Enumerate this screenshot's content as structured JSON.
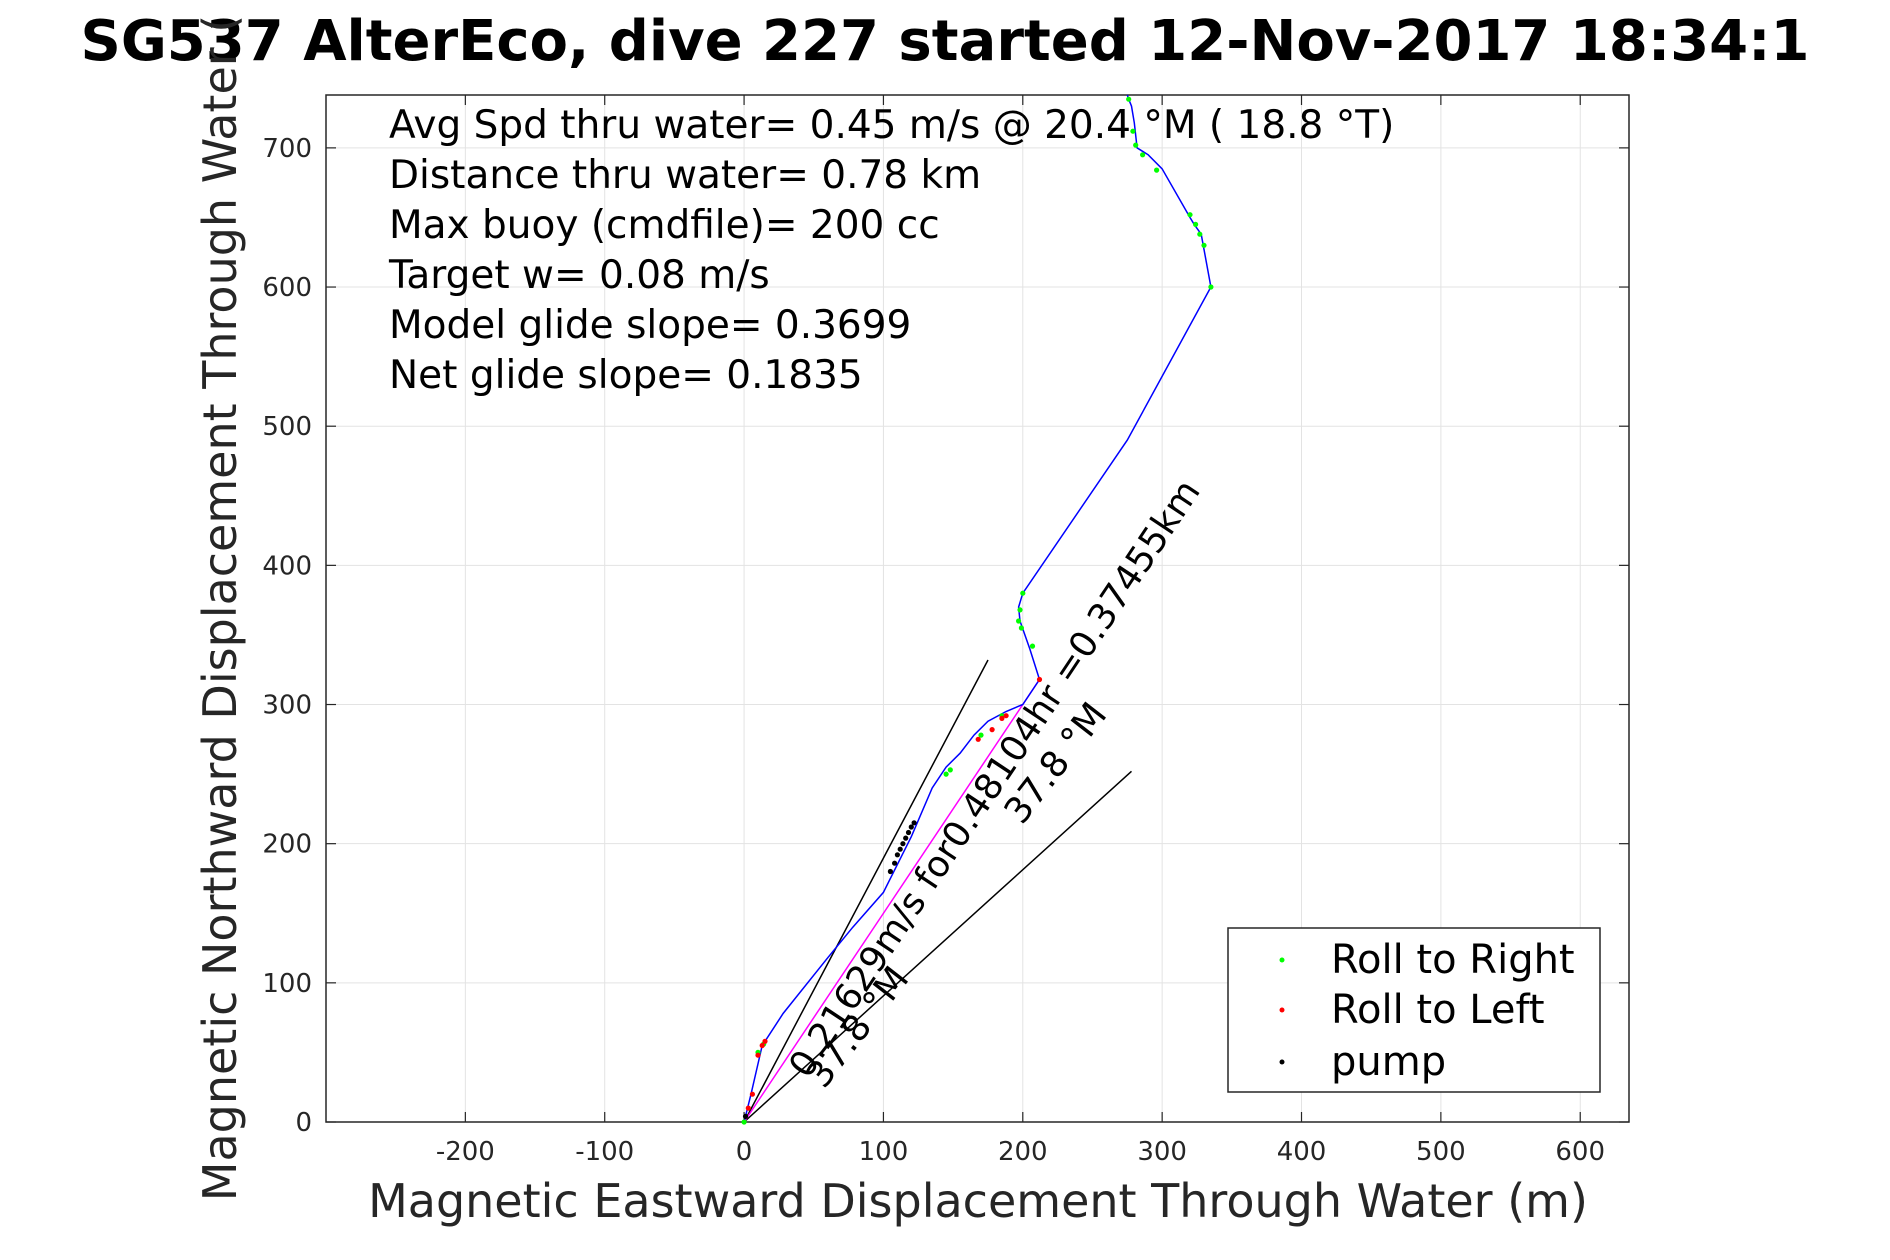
{
  "chart_data": {
    "type": "line",
    "title": "SG537 AlterEco, dive 227 started 12-Nov-2017 18:34:1",
    "xlabel": "Magnetic Eastward Displacement Through Water (m)",
    "ylabel": "Magnetic Northward Displacement Through Water (",
    "xlim": [
      -300,
      635
    ],
    "ylim": [
      0,
      738
    ],
    "xticks": [
      -200,
      -100,
      0,
      100,
      200,
      300,
      400,
      500,
      600
    ],
    "yticks": [
      0,
      100,
      200,
      300,
      400,
      500,
      600,
      700
    ],
    "grid": true,
    "legend_position": "bottom-right",
    "stats_lines": [
      "Avg Spd thru water=  0.45 m/s @  20.4 °M ( 18.8 °T)",
      "Distance thru water=  0.78 km",
      "Max buoy (cmdfile)= 200 cc",
      "Target w= 0.08 m/s",
      "Model glide slope= 0.3699",
      "Net glide slope= 0.1835"
    ],
    "rotated_labels": {
      "current": "0.21629m/s for0.48104hr =0.37455km",
      "heading_1": "37.8 °M",
      "heading_2": "37.8 °M"
    },
    "track": {
      "color": "#0000ff",
      "x": [
        0,
        5,
        13,
        15,
        28,
        60,
        78,
        100,
        120,
        135,
        145,
        155,
        165,
        175,
        188,
        200,
        212,
        205,
        198,
        197,
        200,
        275,
        335,
        328,
        323,
        320,
        300,
        290,
        282,
        280,
        278,
        276,
        275
      ],
      "y": [
        0,
        20,
        55,
        58,
        78,
        118,
        140,
        165,
        205,
        240,
        255,
        265,
        278,
        288,
        295,
        300,
        318,
        340,
        360,
        370,
        380,
        490,
        600,
        638,
        645,
        650,
        685,
        695,
        700,
        718,
        730,
        735,
        738
      ]
    },
    "current_line": {
      "color": "#ff00ff",
      "x": [
        0,
        212
      ],
      "y": [
        0,
        318
      ]
    },
    "heading_lines": [
      {
        "color": "#000000",
        "x": [
          0,
          175
        ],
        "y": [
          0,
          332
        ]
      },
      {
        "color": "#000000",
        "x": [
          0,
          278
        ],
        "y": [
          0,
          252
        ]
      }
    ],
    "series": [
      {
        "name": "Roll to Right",
        "color": "#00ff00",
        "x": [
          0,
          10,
          14,
          145,
          148,
          170,
          185,
          200,
          207,
          199,
          197,
          198,
          276,
          279,
          281,
          286,
          296,
          320,
          324,
          327,
          330,
          335
        ],
        "y": [
          0,
          50,
          56,
          250,
          253,
          278,
          292,
          380,
          342,
          355,
          360,
          368,
          735,
          712,
          702,
          695,
          684,
          652,
          645,
          638,
          630,
          600
        ]
      },
      {
        "name": "Roll to Left",
        "color": "#ff0000",
        "x": [
          3,
          6,
          10,
          13,
          15,
          168,
          178,
          185,
          188,
          212
        ],
        "y": [
          10,
          20,
          48,
          55,
          58,
          275,
          282,
          290,
          292,
          318
        ]
      },
      {
        "name": "pump",
        "color": "#000000",
        "x": [
          105,
          108,
          110,
          112,
          114,
          116,
          118,
          120,
          122,
          1
        ],
        "y": [
          180,
          186,
          192,
          196,
          200,
          204,
          208,
          212,
          215,
          4
        ]
      }
    ]
  }
}
